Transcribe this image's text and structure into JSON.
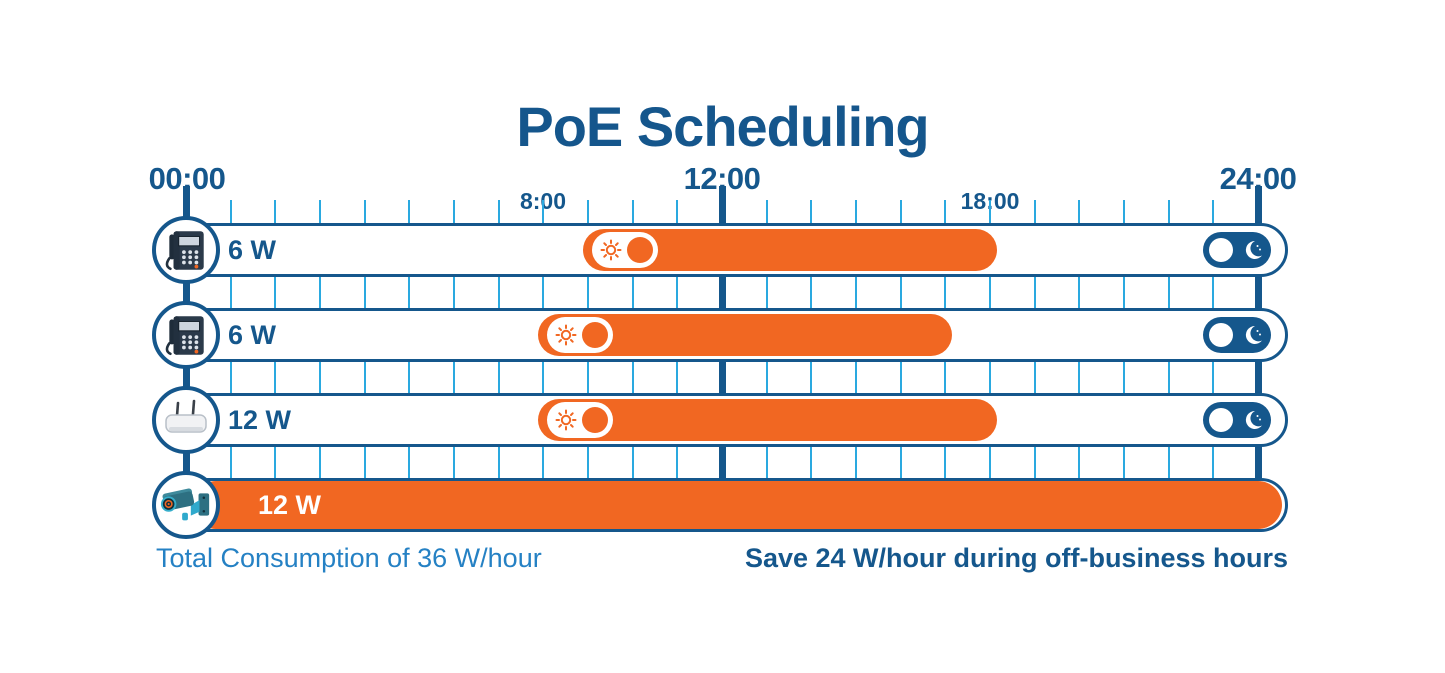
{
  "title": "PoE Scheduling",
  "axis": {
    "hours_total": 24,
    "major_labels": [
      {
        "label": "00:00",
        "hour": 0
      },
      {
        "label": "12:00",
        "hour": 12
      },
      {
        "label": "24:00",
        "hour": 24
      }
    ],
    "minor_labels": [
      {
        "label": "8:00",
        "hour": 8
      },
      {
        "label": "18:00",
        "hour": 18
      }
    ]
  },
  "rows": [
    {
      "device": "ip-phone",
      "icon": "desk-phone-icon",
      "power_label": "6 W",
      "start_hour": 9,
      "end_hour": 18,
      "day_toggle": "sun-on",
      "night_toggle": "moon-off",
      "always_on": false
    },
    {
      "device": "ip-phone",
      "icon": "desk-phone-icon",
      "power_label": "6 W",
      "start_hour": 8,
      "end_hour": 17,
      "day_toggle": "sun-on",
      "night_toggle": "moon-off",
      "always_on": false
    },
    {
      "device": "wireless-access-point",
      "icon": "access-point-icon",
      "power_label": "12 W",
      "start_hour": 8,
      "end_hour": 18,
      "day_toggle": "sun-on",
      "night_toggle": "moon-off",
      "always_on": false
    },
    {
      "device": "security-camera",
      "icon": "camera-icon",
      "power_label": "12 W",
      "start_hour": 0,
      "end_hour": 24,
      "day_toggle": "none",
      "night_toggle": "none",
      "always_on": true
    }
  ],
  "footer": {
    "left_note": "Total Consumption of 36 W/hour",
    "right_note": "Save 24 W/hour during off-business hours"
  },
  "colors": {
    "dark_blue": "#15578C",
    "light_blue": "#2AA9E0",
    "medium_blue": "#2581C4",
    "orange": "#F16722"
  },
  "chart_data": {
    "type": "bar",
    "subtype": "horizontal-schedule-ranges",
    "title": "PoE Scheduling",
    "x_axis": {
      "unit": "hour",
      "min": 0,
      "max": 24,
      "tick_interval": 1,
      "labeled_ticks": [
        "00:00",
        "8:00",
        "12:00",
        "18:00",
        "24:00"
      ]
    },
    "categories": [
      "IP Phone (6 W)",
      "IP Phone (6 W)",
      "Wireless Access Point (12 W)",
      "Security Camera (12 W)"
    ],
    "series": [
      {
        "name": "Powered-on schedule",
        "ranges_hours": [
          [
            9,
            18
          ],
          [
            8,
            17
          ],
          [
            8,
            18
          ],
          [
            0,
            24
          ]
        ]
      }
    ],
    "grid": true,
    "annotations": [
      "Total Consumption of 36 W/hour",
      "Save 24 W/hour during off-business hours"
    ]
  }
}
